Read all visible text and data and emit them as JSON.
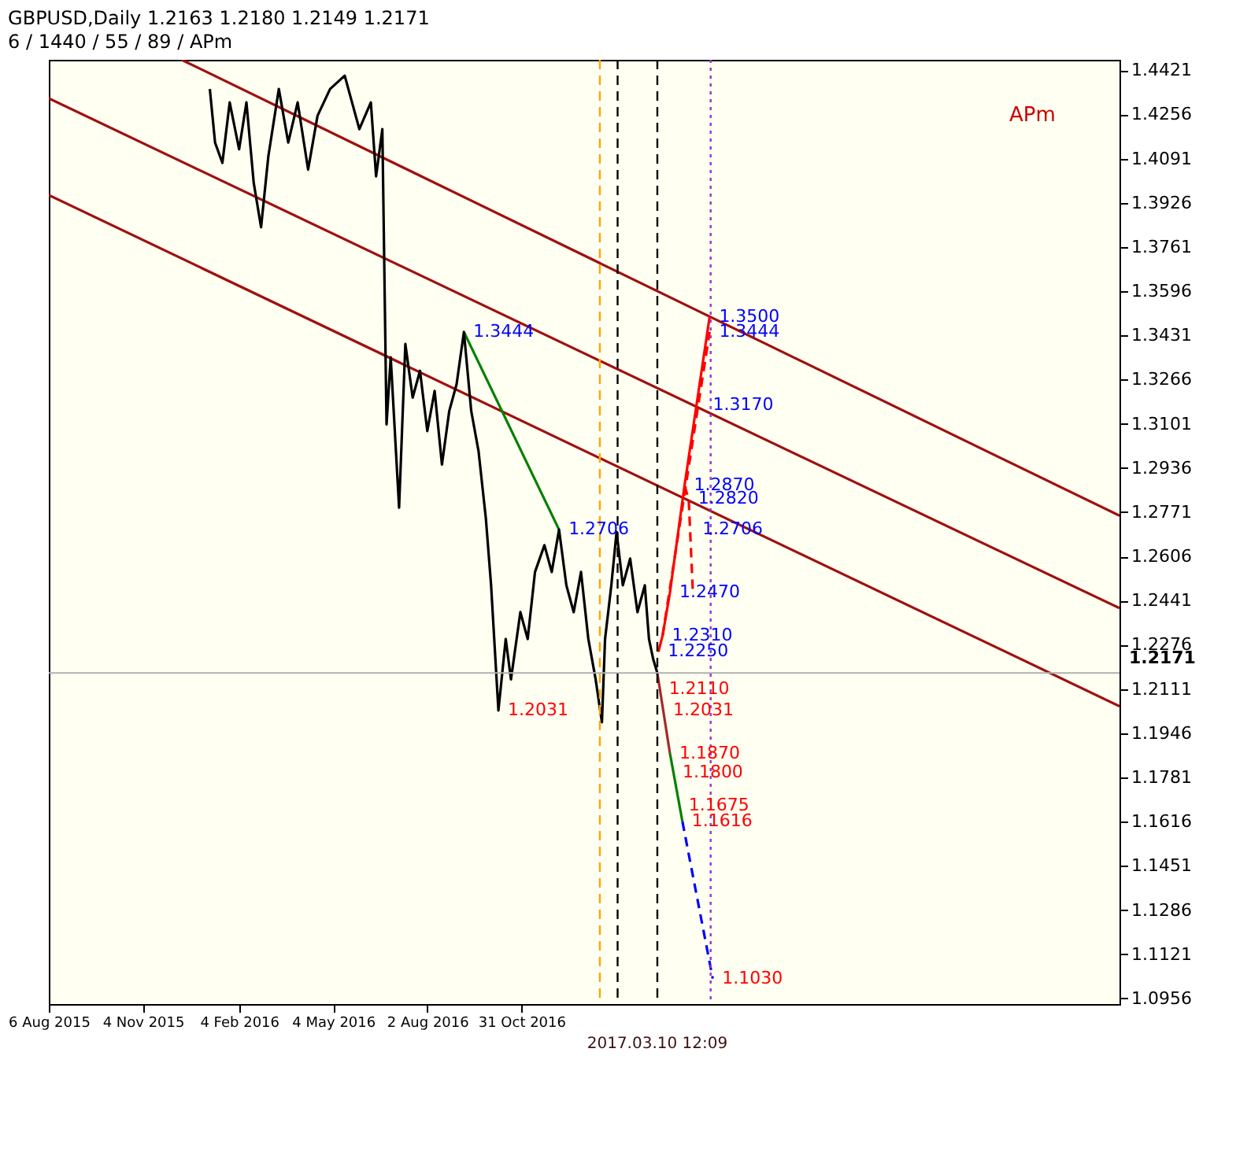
{
  "chart_data": {
    "type": "line",
    "title": "GBPUSD,Daily  1.2163 1.2180 1.2149 1.2171",
    "subtitle": "6 / 1440 / 55 / 89 / APm",
    "xlim": [
      "2015-08-06",
      "2018-05-26"
    ],
    "xticks": [
      {
        "value": "2015-08-06",
        "label": "6 Aug 2015"
      },
      {
        "value": "2015-11-04",
        "label": "4 Nov 2015"
      },
      {
        "value": "2016-02-04",
        "label": "4 Feb 2016"
      },
      {
        "value": "2016-05-04",
        "label": "4 May 2016"
      },
      {
        "value": "2016-08-02",
        "label": "2 Aug 2016"
      },
      {
        "value": "2016-10-31",
        "label": "31 Oct 2016"
      }
    ],
    "ylim": [
      1.0935,
      1.446
    ],
    "yticks": [
      1.4421,
      1.4256,
      1.4091,
      1.3926,
      1.3761,
      1.3596,
      1.3431,
      1.3266,
      1.3101,
      1.2936,
      1.2771,
      1.2606,
      1.2441,
      1.2276,
      1.2111,
      1.1946,
      1.1781,
      1.1616,
      1.1451,
      1.1286,
      1.1121,
      1.0956
    ],
    "grid": false,
    "series": [
      {
        "color": "#a01010",
        "line_style": "solid",
        "x": [
          "2015-12-11",
          "2018-05-26"
        ],
        "values": [
          1.446,
          1.2758
        ]
      },
      {
        "color": "#a01010",
        "line_style": "solid",
        "x": [
          "2015-08-06",
          "2018-05-26"
        ],
        "values": [
          1.4316,
          1.2413
        ]
      },
      {
        "color": "#a01010",
        "line_style": "solid",
        "x": [
          "2015-08-06",
          "2018-05-26"
        ],
        "values": [
          1.3955,
          1.2047
        ]
      },
      {
        "color": "#008000",
        "line_style": "solid",
        "x": [
          "2016-09-06",
          "2016-12-06"
        ],
        "values": [
          1.3444,
          1.2706
        ]
      },
      {
        "color": "#000000",
        "line_style": "solid",
        "x": [
          "2016-01-07",
          "2016-01-12",
          "2016-01-19",
          "2016-01-26",
          "2016-02-04",
          "2016-02-11",
          "2016-02-18",
          "2016-02-25",
          "2016-03-03",
          "2016-03-13",
          "2016-03-22",
          "2016-03-31",
          "2016-04-10",
          "2016-04-19",
          "2016-05-01",
          "2016-05-15",
          "2016-05-29",
          "2016-06-09",
          "2016-06-14",
          "2016-06-20",
          "2016-06-24",
          "2016-06-28",
          "2016-07-06",
          "2016-07-12",
          "2016-07-19",
          "2016-07-26",
          "2016-08-02",
          "2016-08-09",
          "2016-08-16",
          "2016-08-23",
          "2016-08-30",
          "2016-09-06",
          "2016-09-13",
          "2016-09-20",
          "2016-09-27",
          "2016-10-02",
          "2016-10-09",
          "2016-10-16",
          "2016-10-21",
          "2016-10-30",
          "2016-11-06",
          "2016-11-13",
          "2016-11-22",
          "2016-11-29",
          "2016-12-06",
          "2016-12-13",
          "2016-12-20",
          "2016-12-27",
          "2017-01-03",
          "2017-01-10",
          "2017-01-16",
          "2017-01-19",
          "2017-01-25",
          "2017-01-30",
          "2017-02-05",
          "2017-02-12",
          "2017-02-19",
          "2017-02-26",
          "2017-03-02",
          "2017-03-06",
          "2017-03-10"
        ],
        "values": [
          1.4351,
          1.4151,
          1.4075,
          1.4301,
          1.4126,
          1.4301,
          1.4,
          1.3835,
          1.4101,
          1.4351,
          1.4151,
          1.4301,
          1.405,
          1.4251,
          1.4351,
          1.4401,
          1.4201,
          1.4301,
          1.4025,
          1.4201,
          1.3099,
          1.3349,
          1.2788,
          1.3399,
          1.3199,
          1.3299,
          1.3074,
          1.3224,
          1.2949,
          1.3149,
          1.3249,
          1.3444,
          1.3149,
          1.2999,
          1.2748,
          1.2498,
          1.2031,
          1.2298,
          1.2147,
          1.2398,
          1.2298,
          1.2548,
          1.2648,
          1.2548,
          1.2706,
          1.2498,
          1.2398,
          1.2548,
          1.2298,
          1.2147,
          1.1987,
          1.2298,
          1.2498,
          1.2698,
          1.2498,
          1.2598,
          1.2398,
          1.2498,
          1.2298,
          1.2223,
          1.2171
        ]
      },
      {
        "color": "#ff0000",
        "line_style": "solid",
        "x": [
          "2017-03-11",
          "2017-03-15",
          "2017-03-22",
          "2017-04-05",
          "2017-04-29"
        ],
        "values": [
          1.225,
          1.231,
          1.247,
          1.287,
          1.35
        ]
      },
      {
        "color": "#ff0000",
        "line_style": "dashed",
        "x": [
          "2017-04-05",
          "2017-04-09",
          "2017-04-13"
        ],
        "values": [
          1.287,
          1.282,
          1.247
        ]
      },
      {
        "color": "#ff0000",
        "line_style": "dashed",
        "x": [
          "2017-03-15",
          "2017-04-29"
        ],
        "values": [
          1.231,
          1.3444
        ]
      },
      {
        "color": "#a52a2a",
        "line_style": "solid",
        "x": [
          "2017-03-10",
          "2017-03-22"
        ],
        "values": [
          1.2171,
          1.1872
        ]
      },
      {
        "color": "#008000",
        "line_style": "solid",
        "x": [
          "2017-03-22",
          "2017-04-03"
        ],
        "values": [
          1.1872,
          1.1616
        ]
      },
      {
        "color": "#0000ff",
        "line_style": "dashed",
        "x": [
          "2017-04-03",
          "2017-05-02"
        ],
        "values": [
          1.1616,
          1.103
        ]
      }
    ],
    "ref_lines": [
      {
        "axis": "y",
        "value": 1.2171,
        "label": "1.2171",
        "color": "#b0b0b0",
        "line_style": "solid"
      },
      {
        "axis": "x",
        "value": "2017-01-14",
        "label": null,
        "color": "#ffa500",
        "line_style": "dashed"
      },
      {
        "axis": "x",
        "value": "2017-01-31",
        "label": null,
        "color": "#000000",
        "line_style": "dashed"
      },
      {
        "axis": "x",
        "value": "2017-03-10",
        "label": "2017.03.10 12:09",
        "color": "#000000",
        "line_style": "dashed"
      },
      {
        "axis": "x",
        "value": "2017-04-30",
        "label": null,
        "color": "#9932cc",
        "line_style": "dotted"
      }
    ],
    "annotations": [
      "APm",
      {
        "text": "1.3500",
        "x": "2017-04-29",
        "y": 1.35
      },
      {
        "text": "1.3444",
        "x": "2017-04-29",
        "y": 1.3444
      },
      {
        "text": "1.3444",
        "x": "2016-09-06",
        "y": 1.3444
      },
      {
        "text": "1.3170",
        "x": "2017-04-23",
        "y": 1.317
      },
      {
        "text": "1.2870",
        "x": "2017-04-05",
        "y": 1.287
      },
      {
        "text": "1.2820",
        "x": "2017-04-09",
        "y": 1.282
      },
      {
        "text": "1.2706",
        "x": "2016-12-06",
        "y": 1.2706
      },
      {
        "text": "1.2706",
        "x": "2017-04-13",
        "y": 1.2706
      },
      {
        "text": "1.2470",
        "x": "2017-03-22",
        "y": 1.247
      },
      {
        "text": "1.2310",
        "x": "2017-03-15",
        "y": 1.231
      },
      {
        "text": "1.2250",
        "x": "2017-03-11",
        "y": 1.225
      },
      {
        "text": "1.2110",
        "x": "2017-03-12",
        "y": 1.211
      },
      {
        "text": "1.2031",
        "x": "2017-03-16",
        "y": 1.2031
      },
      {
        "text": "1.2031",
        "x": "2016-10-09",
        "y": 1.2031
      },
      {
        "text": "1.1870",
        "x": "2017-03-22",
        "y": 1.187
      },
      {
        "text": "1.1800",
        "x": "2017-03-25",
        "y": 1.18
      },
      {
        "text": "1.1675",
        "x": "2017-03-31",
        "y": 1.1675
      },
      {
        "text": "1.1616",
        "x": "2017-04-03",
        "y": 1.1616
      },
      {
        "text": "1.1030",
        "x": "2017-05-02",
        "y": 1.103
      }
    ]
  }
}
